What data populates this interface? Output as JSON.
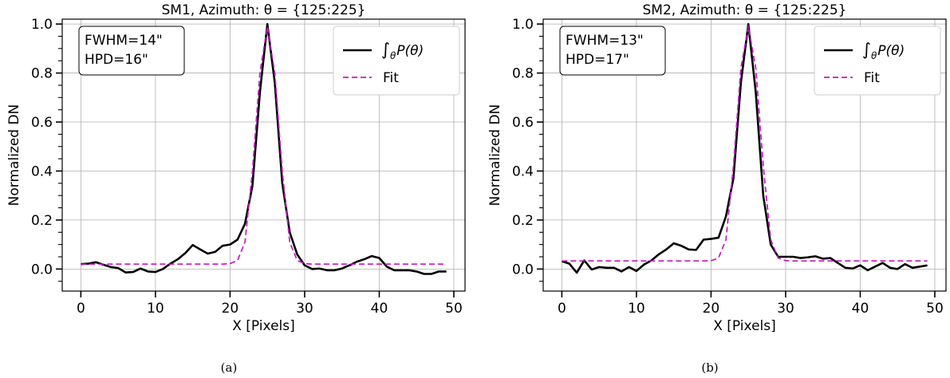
{
  "chart_data": [
    {
      "type": "line",
      "caption": "(a)",
      "title": "SM1, Azimuth: θ = {125:225}",
      "xlabel": "X [Pixels]",
      "ylabel": "Normalized DN",
      "xlim": [
        -2.5,
        51.5
      ],
      "ylim": [
        -0.09,
        1.02
      ],
      "x_ticks": [
        0,
        10,
        20,
        30,
        40,
        50
      ],
      "y_ticks": [
        0.0,
        0.2,
        0.4,
        0.6,
        0.8,
        1.0
      ],
      "y_minor_ticks": [
        -0.05,
        0.05,
        0.1,
        0.15,
        0.25,
        0.3,
        0.35,
        0.45,
        0.5,
        0.55,
        0.65,
        0.7,
        0.75,
        0.85,
        0.9,
        0.95
      ],
      "grid": true,
      "annotation": [
        "FWHM=14\"",
        "HPD=16\""
      ],
      "legend_position": "top-right",
      "legend_data_label": "∫θP(θ)",
      "legend_fit_label": "Fit",
      "series": [
        {
          "role": "data",
          "color": "#000000",
          "style": "solid",
          "x": [
            0,
            1,
            2,
            3,
            4,
            5,
            6,
            7,
            8,
            9,
            10,
            11,
            12,
            13,
            14,
            15,
            16,
            17,
            18,
            19,
            20,
            21,
            22,
            23,
            24,
            25,
            26,
            27,
            28,
            29,
            30,
            31,
            32,
            33,
            34,
            35,
            36,
            37,
            38,
            39,
            40,
            41,
            42,
            43,
            44,
            45,
            46,
            47,
            48,
            49
          ],
          "y": [
            0.02,
            0.022,
            0.028,
            0.018,
            0.008,
            0.004,
            -0.014,
            -0.012,
            0.002,
            -0.01,
            -0.012,
            0.0,
            0.022,
            0.04,
            0.065,
            0.098,
            0.08,
            0.063,
            0.07,
            0.095,
            0.1,
            0.12,
            0.185,
            0.34,
            0.72,
            1.0,
            0.76,
            0.35,
            0.15,
            0.06,
            0.015,
            0.0,
            0.002,
            -0.005,
            -0.005,
            0.002,
            0.015,
            0.03,
            0.04,
            0.053,
            0.045,
            0.01,
            -0.005,
            -0.005,
            -0.005,
            -0.01,
            -0.02,
            -0.02,
            -0.01,
            -0.01
          ]
        },
        {
          "role": "fit",
          "color": "#c417c4",
          "style": "dashed",
          "x": [
            0,
            1,
            2,
            3,
            4,
            5,
            6,
            7,
            8,
            9,
            10,
            11,
            12,
            13,
            14,
            15,
            16,
            17,
            18,
            19,
            20,
            21,
            22,
            23,
            24,
            25,
            26,
            27,
            28,
            29,
            30,
            31,
            32,
            33,
            34,
            35,
            36,
            37,
            38,
            39,
            40,
            41,
            42,
            43,
            44,
            45,
            46,
            47,
            48,
            49
          ],
          "y": [
            0.02,
            0.02,
            0.02,
            0.02,
            0.02,
            0.02,
            0.02,
            0.02,
            0.02,
            0.02,
            0.02,
            0.02,
            0.02,
            0.02,
            0.02,
            0.02,
            0.02,
            0.02,
            0.02,
            0.02,
            0.022,
            0.035,
            0.11,
            0.4,
            0.8,
            0.99,
            0.8,
            0.4,
            0.11,
            0.035,
            0.022,
            0.02,
            0.02,
            0.02,
            0.02,
            0.02,
            0.02,
            0.02,
            0.02,
            0.02,
            0.02,
            0.02,
            0.02,
            0.02,
            0.02,
            0.02,
            0.02,
            0.02,
            0.02,
            0.02
          ]
        }
      ]
    },
    {
      "type": "line",
      "caption": "(b)",
      "title": "SM2, Azimuth: θ = {125:225}",
      "xlabel": "X [Pixels]",
      "ylabel": "Normalized DN",
      "xlim": [
        -2.5,
        51.5
      ],
      "ylim": [
        -0.09,
        1.02
      ],
      "x_ticks": [
        0,
        10,
        20,
        30,
        40,
        50
      ],
      "y_ticks": [
        0.0,
        0.2,
        0.4,
        0.6,
        0.8,
        1.0
      ],
      "y_minor_ticks": [
        -0.05,
        0.05,
        0.1,
        0.15,
        0.25,
        0.3,
        0.35,
        0.45,
        0.5,
        0.55,
        0.65,
        0.7,
        0.75,
        0.85,
        0.9,
        0.95
      ],
      "grid": true,
      "annotation": [
        "FWHM=13\"",
        "HPD=17\""
      ],
      "legend_position": "top-right",
      "legend_data_label": "∫θP(θ)",
      "legend_fit_label": "Fit",
      "series": [
        {
          "role": "data",
          "color": "#000000",
          "style": "solid",
          "x": [
            0,
            1,
            2,
            3,
            4,
            5,
            6,
            7,
            8,
            9,
            10,
            11,
            12,
            13,
            14,
            15,
            16,
            17,
            18,
            19,
            20,
            21,
            22,
            23,
            24,
            25,
            26,
            27,
            28,
            29,
            30,
            31,
            32,
            33,
            34,
            35,
            36,
            37,
            38,
            39,
            40,
            41,
            42,
            43,
            44,
            45,
            46,
            47,
            48,
            49
          ],
          "y": [
            0.032,
            0.022,
            -0.015,
            0.035,
            -0.002,
            0.008,
            0.005,
            0.005,
            -0.01,
            0.008,
            -0.008,
            0.018,
            0.035,
            0.06,
            0.08,
            0.105,
            0.095,
            0.08,
            0.078,
            0.12,
            0.123,
            0.128,
            0.215,
            0.37,
            0.76,
            1.0,
            0.72,
            0.3,
            0.1,
            0.05,
            0.05,
            0.05,
            0.045,
            0.048,
            0.052,
            0.042,
            0.045,
            0.025,
            0.005,
            0.002,
            0.015,
            -0.005,
            0.01,
            0.025,
            0.005,
            0.0,
            0.02,
            0.005,
            0.01,
            0.015
          ]
        },
        {
          "role": "fit",
          "color": "#c417c4",
          "style": "dashed",
          "x": [
            0,
            1,
            2,
            3,
            4,
            5,
            6,
            7,
            8,
            9,
            10,
            11,
            12,
            13,
            14,
            15,
            16,
            17,
            18,
            19,
            20,
            21,
            22,
            23,
            24,
            25,
            26,
            27,
            28,
            29,
            30,
            31,
            32,
            33,
            34,
            35,
            36,
            37,
            38,
            39,
            40,
            41,
            42,
            43,
            44,
            45,
            46,
            47,
            48,
            49
          ],
          "y": [
            0.033,
            0.033,
            0.033,
            0.033,
            0.033,
            0.033,
            0.033,
            0.033,
            0.033,
            0.033,
            0.033,
            0.033,
            0.033,
            0.033,
            0.033,
            0.033,
            0.033,
            0.033,
            0.033,
            0.033,
            0.034,
            0.045,
            0.12,
            0.42,
            0.82,
            0.99,
            0.82,
            0.42,
            0.12,
            0.045,
            0.034,
            0.033,
            0.033,
            0.033,
            0.033,
            0.033,
            0.033,
            0.033,
            0.033,
            0.033,
            0.033,
            0.033,
            0.033,
            0.033,
            0.033,
            0.033,
            0.033,
            0.033,
            0.033,
            0.033
          ]
        }
      ]
    }
  ]
}
